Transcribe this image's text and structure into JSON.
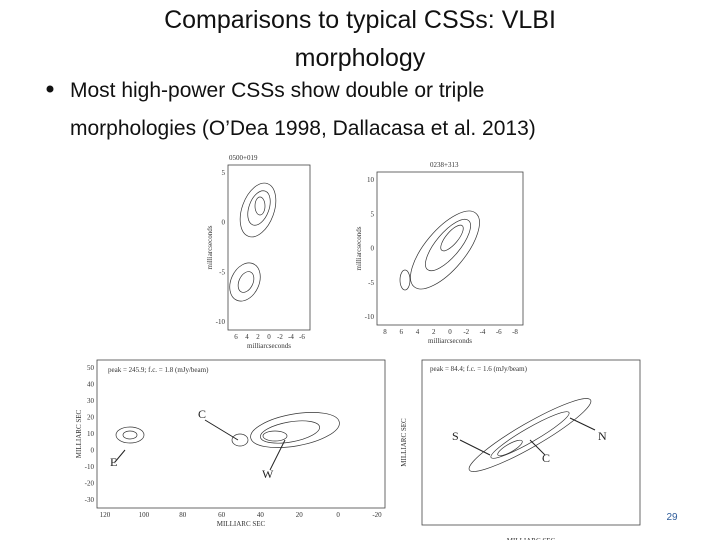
{
  "title": "Comparisons to typical CSSs: VLBI morphology",
  "bullets": [
    "Most high-power CSSs show double or triple morphologies (O’Dea 1998, Dallacasa et al. 2013)"
  ],
  "figures": [
    {
      "label": "0500+019",
      "y_axis": "milliarcseconds",
      "x_axis": "milliarcseconds",
      "yticks": [
        "5",
        "0",
        "-5",
        "-10"
      ],
      "xticks": [
        "6",
        "4",
        "2",
        "0",
        "-2",
        "-4",
        "-6"
      ]
    },
    {
      "label": "0238+313",
      "y_axis": "milliarcseconds",
      "x_axis": "milliarcseconds",
      "yticks": [
        "10",
        "5",
        "0",
        "-5",
        "-10"
      ],
      "xticks": [
        "8",
        "6",
        "4",
        "2",
        "0",
        "-2",
        "-4",
        "-6",
        "-8"
      ]
    },
    {
      "label": "peak = 245.9; f.c. = 1.8 (mJy/beam)",
      "y_axis": "MILLIARC SEC",
      "x_axis": "MILLIARC SEC",
      "yticks": [
        "50",
        "40",
        "30",
        "20",
        "10",
        "0",
        "-10",
        "-20",
        "-30"
      ],
      "xticks": [
        "120",
        "100",
        "80",
        "60",
        "40",
        "20",
        "0",
        "-20"
      ],
      "annotations": [
        "C",
        "E",
        "W"
      ]
    },
    {
      "label": "peak = 84.4; f.c. = 1.6 (mJy/beam)",
      "y_axis": "MILLIARC SEC",
      "x_axis": "MILLIARC SEC",
      "annotations": [
        "S",
        "N",
        "C"
      ]
    }
  ],
  "page_number": "29"
}
